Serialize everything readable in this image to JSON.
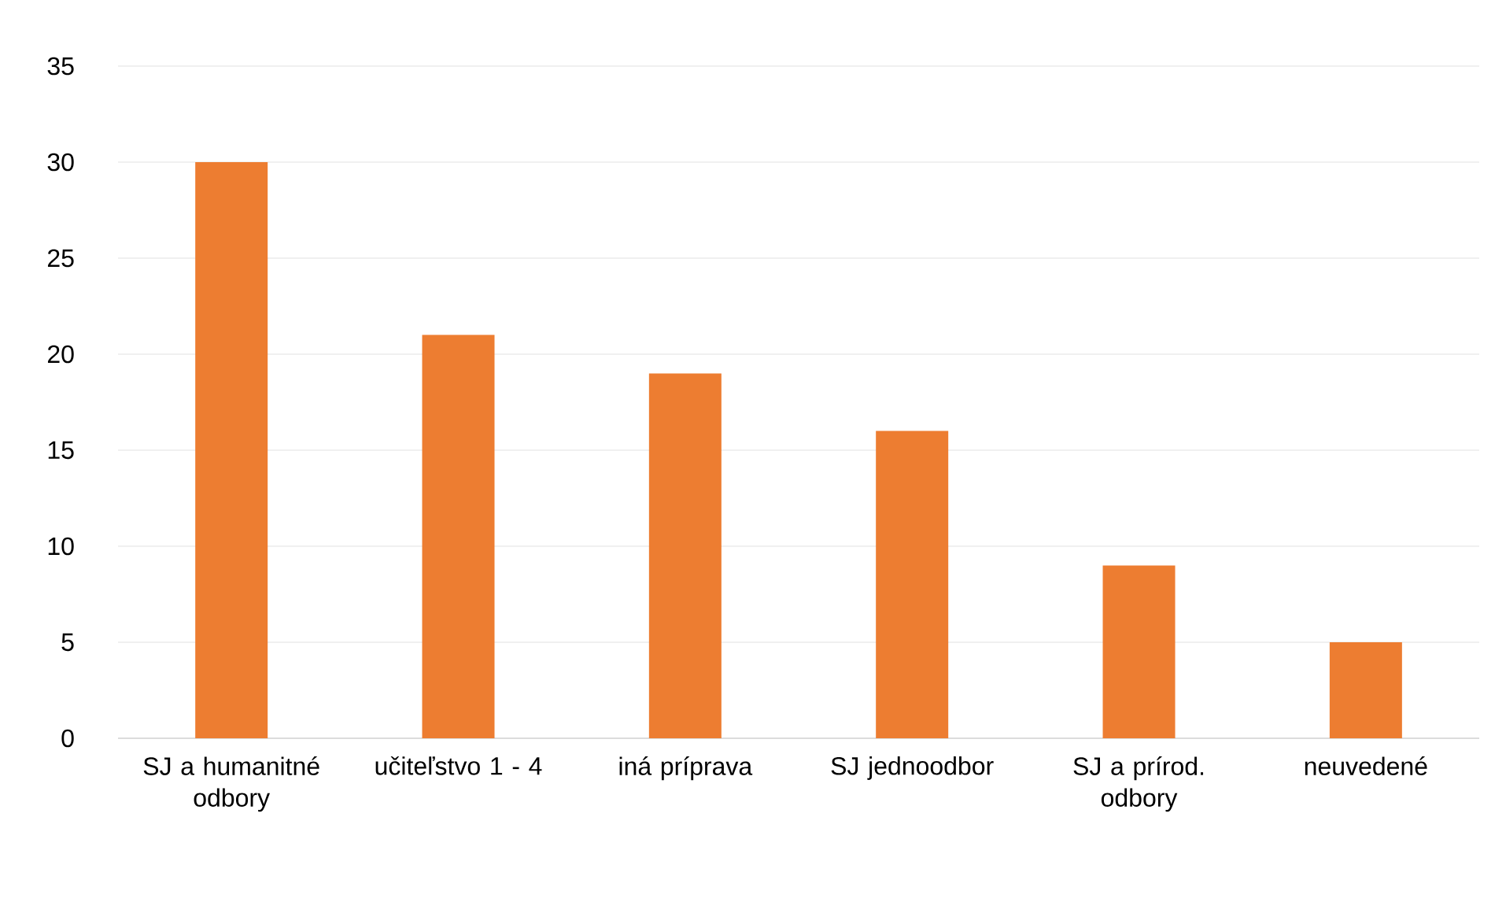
{
  "chart_data": {
    "type": "bar",
    "categories": [
      "SJ a humanitné odbory",
      "učiteľstvo 1 - 4",
      "iná príprava",
      "SJ jednoodbor",
      "SJ a prírod. odbory",
      "neuvedené"
    ],
    "values": [
      30,
      21,
      19,
      16,
      9,
      5
    ],
    "color": "#ed7d31",
    "ylim": [
      0,
      35
    ],
    "yticks": [
      0,
      5,
      10,
      15,
      20,
      25,
      30,
      35
    ],
    "grid": "y"
  }
}
